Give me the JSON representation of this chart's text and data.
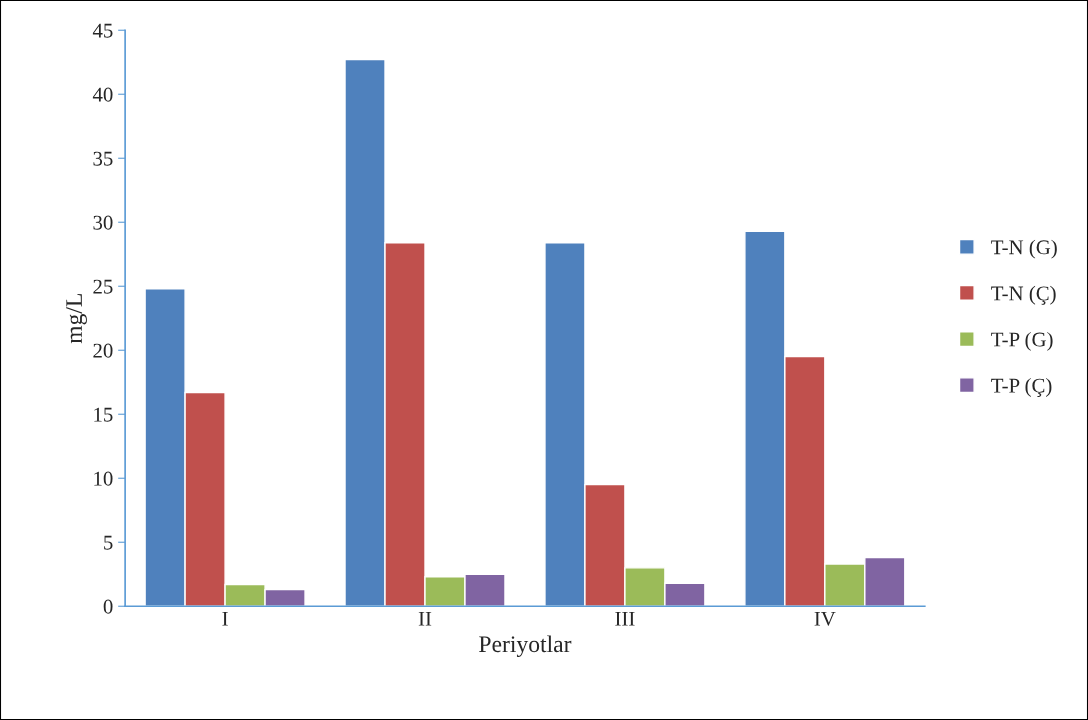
{
  "chart_data": {
    "type": "bar",
    "xlabel": "Periyotlar",
    "ylabel": "mg/L",
    "categories": [
      "I",
      "II",
      "III",
      "IV"
    ],
    "series": [
      {
        "name": "T-N (G)",
        "color": "#4f81bd",
        "values": [
          24.8,
          42.7,
          28.4,
          29.3
        ]
      },
      {
        "name": "T-N (Ç)",
        "color": "#c0504d",
        "values": [
          16.7,
          28.4,
          9.5,
          19.5
        ]
      },
      {
        "name": "T-P (G)",
        "color": "#9bbb59",
        "values": [
          1.7,
          2.3,
          3.0,
          3.3
        ]
      },
      {
        "name": "T-P (Ç)",
        "color": "#8064a2",
        "values": [
          1.3,
          2.5,
          1.8,
          3.8
        ]
      }
    ],
    "ylim": [
      0,
      45
    ],
    "yticks": [
      0,
      5,
      10,
      15,
      20,
      25,
      30,
      35,
      40,
      45
    ],
    "grid": false,
    "legend": "right"
  }
}
